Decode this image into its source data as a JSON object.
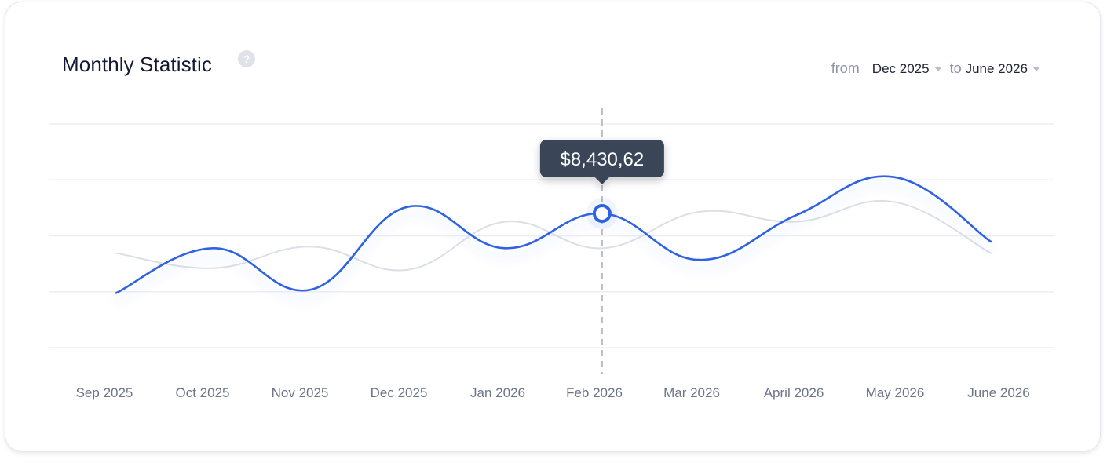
{
  "header": {
    "title": "Monthly Statistic",
    "help_icon": "question-circle-icon",
    "range": {
      "from_label": "from",
      "from_value": "Dec 2025",
      "to_label": "to",
      "to_value": "June 2026"
    }
  },
  "chart_data": {
    "type": "line",
    "categories": [
      "Sep 2025",
      "Oct 2025",
      "Nov 2025",
      "Dec 2025",
      "Jan 2026",
      "Feb 2026",
      "Mar 2026",
      "April 2026",
      "May 2026",
      "June 2026"
    ],
    "series": [
      {
        "color": "#2f62e0",
        "values": [
          28,
          55,
          30,
          80,
          55,
          76,
          48,
          75,
          98,
          59
        ]
      },
      {
        "color": "#dcdfe6",
        "values": [
          52,
          43,
          56,
          42,
          71,
          55,
          77,
          71,
          83,
          52
        ]
      }
    ],
    "ylim": [
      -5,
      130
    ],
    "grid": true,
    "highlight": {
      "category": "Feb 2026",
      "label": "$8,430,62"
    }
  }
}
